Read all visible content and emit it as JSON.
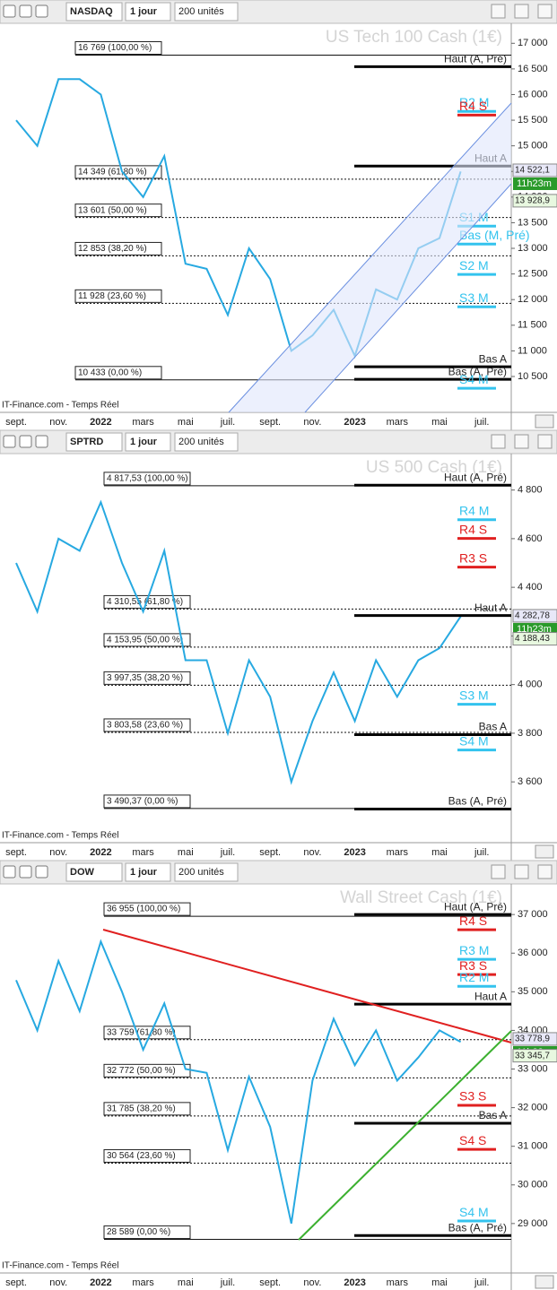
{
  "chart_data": [
    {
      "type": "line",
      "title": "US Tech 100 Cash (1€)",
      "toolbar": {
        "symbol": "NASDAQ",
        "period": "1 jour",
        "units": "200 unités"
      },
      "source": "IT-Finance.com - Temps Réel",
      "categories": [
        "sept.",
        null,
        "nov.",
        null,
        "2022",
        null,
        "mars",
        null,
        "mai",
        null,
        "juil.",
        null,
        "sept.",
        null,
        "nov.",
        null,
        "2023",
        null,
        "mars",
        null,
        "mai",
        null,
        "juil."
      ],
      "values": [
        15500,
        15000,
        16300,
        16300,
        16000,
        14500,
        14000,
        14800,
        12700,
        12600,
        11700,
        13000,
        12400,
        11000,
        11300,
        11800,
        10900,
        12200,
        12000,
        13000,
        13200,
        14500,
        null
      ],
      "color": "#27a9e1",
      "ylim": [
        9800,
        17320
      ],
      "yticks": [
        {
          "value": 10500,
          "label": "10 500"
        },
        {
          "value": 11000,
          "label": "11 000"
        },
        {
          "value": 11500,
          "label": "11 500"
        },
        {
          "value": 12000,
          "label": "12 000"
        },
        {
          "value": 12500,
          "label": "12 500"
        },
        {
          "value": 13000,
          "label": "13 000"
        },
        {
          "value": 13500,
          "label": "13 500"
        },
        {
          "value": 14000,
          "label": "14 000"
        },
        {
          "value": 14500,
          "label": "14 500"
        },
        {
          "value": 15000,
          "label": "15 000"
        },
        {
          "value": 15500,
          "label": "15 500"
        },
        {
          "value": 16000,
          "label": "16 000"
        },
        {
          "value": 16500,
          "label": "16 500"
        },
        {
          "value": 17000,
          "label": "17 000"
        }
      ],
      "fib_levels": [
        {
          "value": 16769,
          "label": "16 769 (100,00 %)"
        },
        {
          "value": 14349,
          "label": "14 349 (61,80 %)"
        },
        {
          "value": 13601,
          "label": "13 601 (50,00 %)"
        },
        {
          "value": 12853,
          "label": "12 853 (38,20 %)"
        },
        {
          "value": 11928,
          "label": "11 928 (23,60 %)"
        },
        {
          "value": 10433,
          "label": "10 433 (0,00 %)"
        }
      ],
      "pivots": [
        {
          "value": 16545,
          "label": "Haut (A, Pré)",
          "color": "#000000"
        },
        {
          "value": 15671,
          "label": "R2 M",
          "color": "#33c3ee"
        },
        {
          "value": 15600,
          "label": "R4 S",
          "color": "#e02020"
        },
        {
          "value": 14605,
          "label": "Haut A",
          "color": "#000000"
        },
        {
          "value": 13433,
          "label": "S1 M",
          "color": "#33c3ee"
        },
        {
          "value": 13084,
          "label": "Bas (M, Pré)",
          "color": "#33c3ee"
        },
        {
          "value": 12490,
          "label": "S2 M",
          "color": "#33c3ee"
        },
        {
          "value": 11860,
          "label": "S3 M",
          "color": "#33c3ee"
        },
        {
          "value": 10690,
          "label": "Bas A",
          "color": "#000000"
        },
        {
          "value": 10445,
          "label": "Bas (A, Pré)",
          "color": "#000000"
        },
        {
          "value": 10270,
          "label": "S4 M",
          "color": "#33c3ee"
        }
      ],
      "price_labels": [
        {
          "value": 14522.1,
          "label": "14 522,1"
        },
        {
          "value": 13928.9,
          "label": "13 928,9"
        }
      ],
      "timer": "11h23m"
    },
    {
      "type": "line",
      "title": "US 500 Cash (1€)",
      "toolbar": {
        "symbol": "SPTRD",
        "period": "1 jour",
        "units": "200 unités"
      },
      "source": "IT-Finance.com - Temps Réel",
      "categories": [
        "sept.",
        null,
        "nov.",
        null,
        "2022",
        null,
        "mars",
        null,
        "mai",
        null,
        "juil.",
        null,
        "sept.",
        null,
        "nov.",
        null,
        "2023",
        null,
        "mars",
        null,
        "mai",
        null,
        "juil."
      ],
      "values": [
        4500,
        4300,
        4600,
        4550,
        4750,
        4500,
        4300,
        4550,
        4100,
        4100,
        3800,
        4100,
        3950,
        3600,
        3850,
        4050,
        3850,
        4100,
        3950,
        4100,
        4150,
        4280,
        null
      ],
      "color": "#27a9e1",
      "ylim": [
        3350,
        4935
      ],
      "yticks": [
        {
          "value": 3600,
          "label": "3 600"
        },
        {
          "value": 3800,
          "label": "3 800"
        },
        {
          "value": 4000,
          "label": "4 000"
        },
        {
          "value": 4200,
          "label": "4 200"
        },
        {
          "value": 4400,
          "label": "4 400"
        },
        {
          "value": 4600,
          "label": "4 600"
        },
        {
          "value": 4800,
          "label": "4 800"
        }
      ],
      "fib_levels": [
        {
          "value": 4817.53,
          "label": "4 817,53 (100,00 %)"
        },
        {
          "value": 4310.55,
          "label": "4 310,55 (61,80 %)"
        },
        {
          "value": 4153.95,
          "label": "4 153,95 (50,00 %)"
        },
        {
          "value": 3997.35,
          "label": "3 997,35 (38,20 %)"
        },
        {
          "value": 3803.58,
          "label": "3 803,58 (23,60 %)"
        },
        {
          "value": 3490.37,
          "label": "3 490,37 (0,00 %)"
        }
      ],
      "pivots": [
        {
          "value": 4820,
          "label": "Haut (A, Pré)",
          "color": "#000000"
        },
        {
          "value": 4678,
          "label": "R4 M",
          "color": "#33c3ee"
        },
        {
          "value": 4601,
          "label": "R4 S",
          "color": "#e02020"
        },
        {
          "value": 4483,
          "label": "R3 S",
          "color": "#e02020"
        },
        {
          "value": 4284,
          "label": "Haut A",
          "color": "#000000"
        },
        {
          "value": 3919,
          "label": "S3 M",
          "color": "#33c3ee"
        },
        {
          "value": 3794,
          "label": "Bas A",
          "color": "#000000"
        },
        {
          "value": 3731,
          "label": "S4 M",
          "color": "#33c3ee"
        },
        {
          "value": 3488,
          "label": "Bas (A, Pré)",
          "color": "#000000"
        }
      ],
      "price_labels": [
        {
          "value": 4282.78,
          "label": "4 282,78"
        },
        {
          "value": 4188.43,
          "label": "4 188,43"
        }
      ],
      "timer": "11h23m"
    },
    {
      "type": "line",
      "title": "Wall Street Cash (1€)",
      "toolbar": {
        "symbol": "DOW",
        "period": "1 jour",
        "units": "200 unités"
      },
      "source": "IT-Finance.com - Temps Réel",
      "categories": [
        "sept.",
        null,
        "nov.",
        null,
        "2022",
        null,
        "mars",
        null,
        "mai",
        null,
        "juil.",
        null,
        "sept.",
        null,
        "nov.",
        null,
        "2023",
        null,
        "mars",
        null,
        "mai",
        null,
        "juil."
      ],
      "values": [
        35300,
        34000,
        35800,
        34500,
        36300,
        35000,
        33500,
        34700,
        33000,
        32900,
        30900,
        32800,
        31500,
        29000,
        32700,
        34300,
        33100,
        34000,
        32700,
        33300,
        34000,
        33700,
        null
      ],
      "color": "#27a9e1",
      "ylim": [
        27720,
        37700
      ],
      "yticks": [
        {
          "value": 29000,
          "label": "29 000"
        },
        {
          "value": 30000,
          "label": "30 000"
        },
        {
          "value": 31000,
          "label": "31 000"
        },
        {
          "value": 32000,
          "label": "32 000"
        },
        {
          "value": 33000,
          "label": "33 000"
        },
        {
          "value": 34000,
          "label": "34 000"
        },
        {
          "value": 35000,
          "label": "35 000"
        },
        {
          "value": 36000,
          "label": "36 000"
        },
        {
          "value": 37000,
          "label": "37 000"
        }
      ],
      "fib_levels": [
        {
          "value": 36955,
          "label": "36 955 (100,00 %)"
        },
        {
          "value": 33759,
          "label": "33 759 (61,80 %)"
        },
        {
          "value": 32772,
          "label": "32 772 (50,00 %)"
        },
        {
          "value": 31785,
          "label": "31 785 (38,20 %)"
        },
        {
          "value": 30564,
          "label": "30 564 (23,60 %)"
        },
        {
          "value": 28589,
          "label": "28 589 (0,00 %)"
        }
      ],
      "pivots": [
        {
          "value": 37000,
          "label": "Haut (A, Pré)",
          "color": "#000000"
        },
        {
          "value": 36605,
          "label": "R4 S",
          "color": "#e02020"
        },
        {
          "value": 35840,
          "label": "R3 M",
          "color": "#33c3ee"
        },
        {
          "value": 35445,
          "label": "R3 S",
          "color": "#e02020"
        },
        {
          "value": 35140,
          "label": "R2 M",
          "color": "#33c3ee"
        },
        {
          "value": 34680,
          "label": "Haut A",
          "color": "#000000"
        },
        {
          "value": 32060,
          "label": "S3 S",
          "color": "#e02020"
        },
        {
          "value": 31595,
          "label": "Bas A",
          "color": "#000000"
        },
        {
          "value": 30920,
          "label": "S4 S",
          "color": "#e02020"
        },
        {
          "value": 29065,
          "label": "S4 M",
          "color": "#33c3ee"
        },
        {
          "value": 28690,
          "label": "Bas (A, Pré)",
          "color": "#000000"
        }
      ],
      "price_labels": [
        {
          "value": 33778.9,
          "label": "33 778,9"
        },
        {
          "value": 33345.7,
          "label": "33 345,7"
        }
      ],
      "timer": "11h23m"
    }
  ]
}
